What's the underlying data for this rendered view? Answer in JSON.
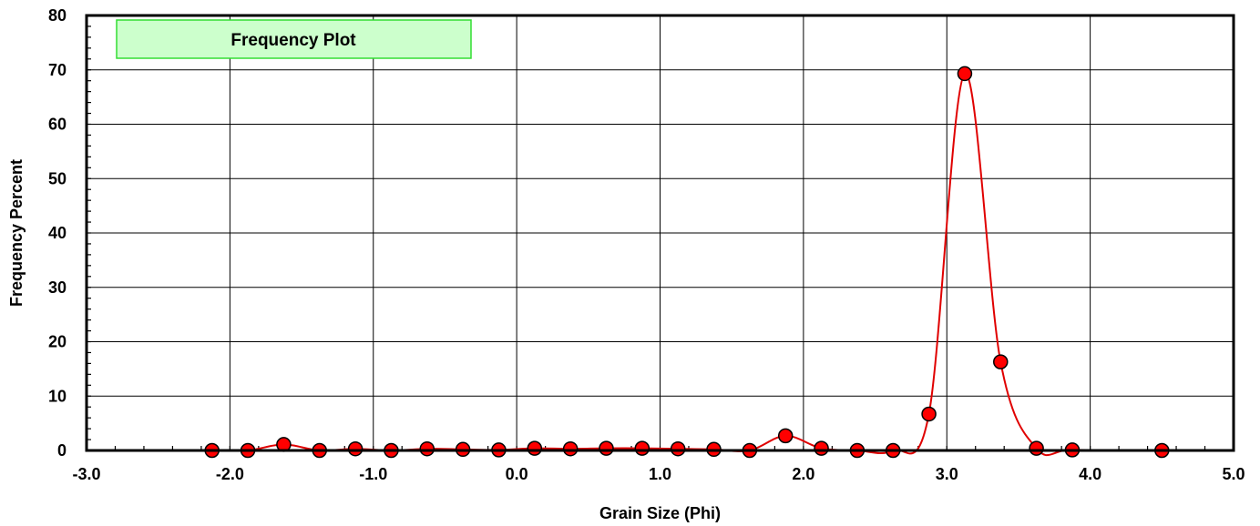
{
  "chart_data": {
    "type": "line",
    "title": "Frequency Plot",
    "xlabel": "Grain Size (Phi)",
    "ylabel": "Frequency Percent",
    "xlim": [
      -3.0,
      5.0
    ],
    "ylim": [
      0,
      80
    ],
    "x_ticks": [
      "-3.0",
      "-2.0",
      "-1.0",
      "0.0",
      "1.0",
      "2.0",
      "3.0",
      "4.0",
      "5.0"
    ],
    "y_ticks": [
      "0",
      "10",
      "20",
      "30",
      "40",
      "50",
      "60",
      "70",
      "80"
    ],
    "grid": true,
    "smooth": true,
    "series": [
      {
        "color": "#e00000",
        "marker_color": "#ff0000",
        "x": [
          -2.125,
          -1.875,
          -1.625,
          -1.375,
          -1.125,
          -0.875,
          -0.625,
          -0.375,
          -0.125,
          0.125,
          0.375,
          0.625,
          0.875,
          1.125,
          1.375,
          1.625,
          1.875,
          2.125,
          2.375,
          2.625,
          2.875,
          3.125,
          3.375,
          3.625,
          3.875,
          4.5
        ],
        "y": [
          0.0,
          0.0,
          1.1,
          0.0,
          0.3,
          0.0,
          0.3,
          0.2,
          0.1,
          0.4,
          0.3,
          0.4,
          0.4,
          0.3,
          0.2,
          0.0,
          2.7,
          0.4,
          0.0,
          0.0,
          6.7,
          69.3,
          16.3,
          0.4,
          0.1,
          0.0
        ]
      }
    ]
  }
}
